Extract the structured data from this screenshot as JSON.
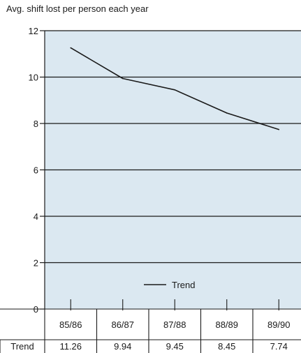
{
  "chart_data": {
    "type": "line",
    "title": "Avg. shift lost per person each year",
    "categories": [
      "85/86",
      "86/87",
      "87/88",
      "88/89",
      "89/90"
    ],
    "series": [
      {
        "name": "Trend",
        "values": [
          11.26,
          9.94,
          9.45,
          8.45,
          7.74
        ]
      }
    ],
    "ylim": [
      0,
      12
    ],
    "yticks": [
      0,
      2,
      4,
      6,
      8,
      10,
      12
    ],
    "grid": true,
    "legend": "bottom-center",
    "table_row_label": "Trend",
    "table_values": [
      "11.26",
      "9.94",
      "9.45",
      "8.45",
      "7.74"
    ],
    "colors": {
      "plot_bg": "#dbe8f1",
      "line": "#1a1a1a",
      "grid": "#1a1a1a"
    }
  }
}
